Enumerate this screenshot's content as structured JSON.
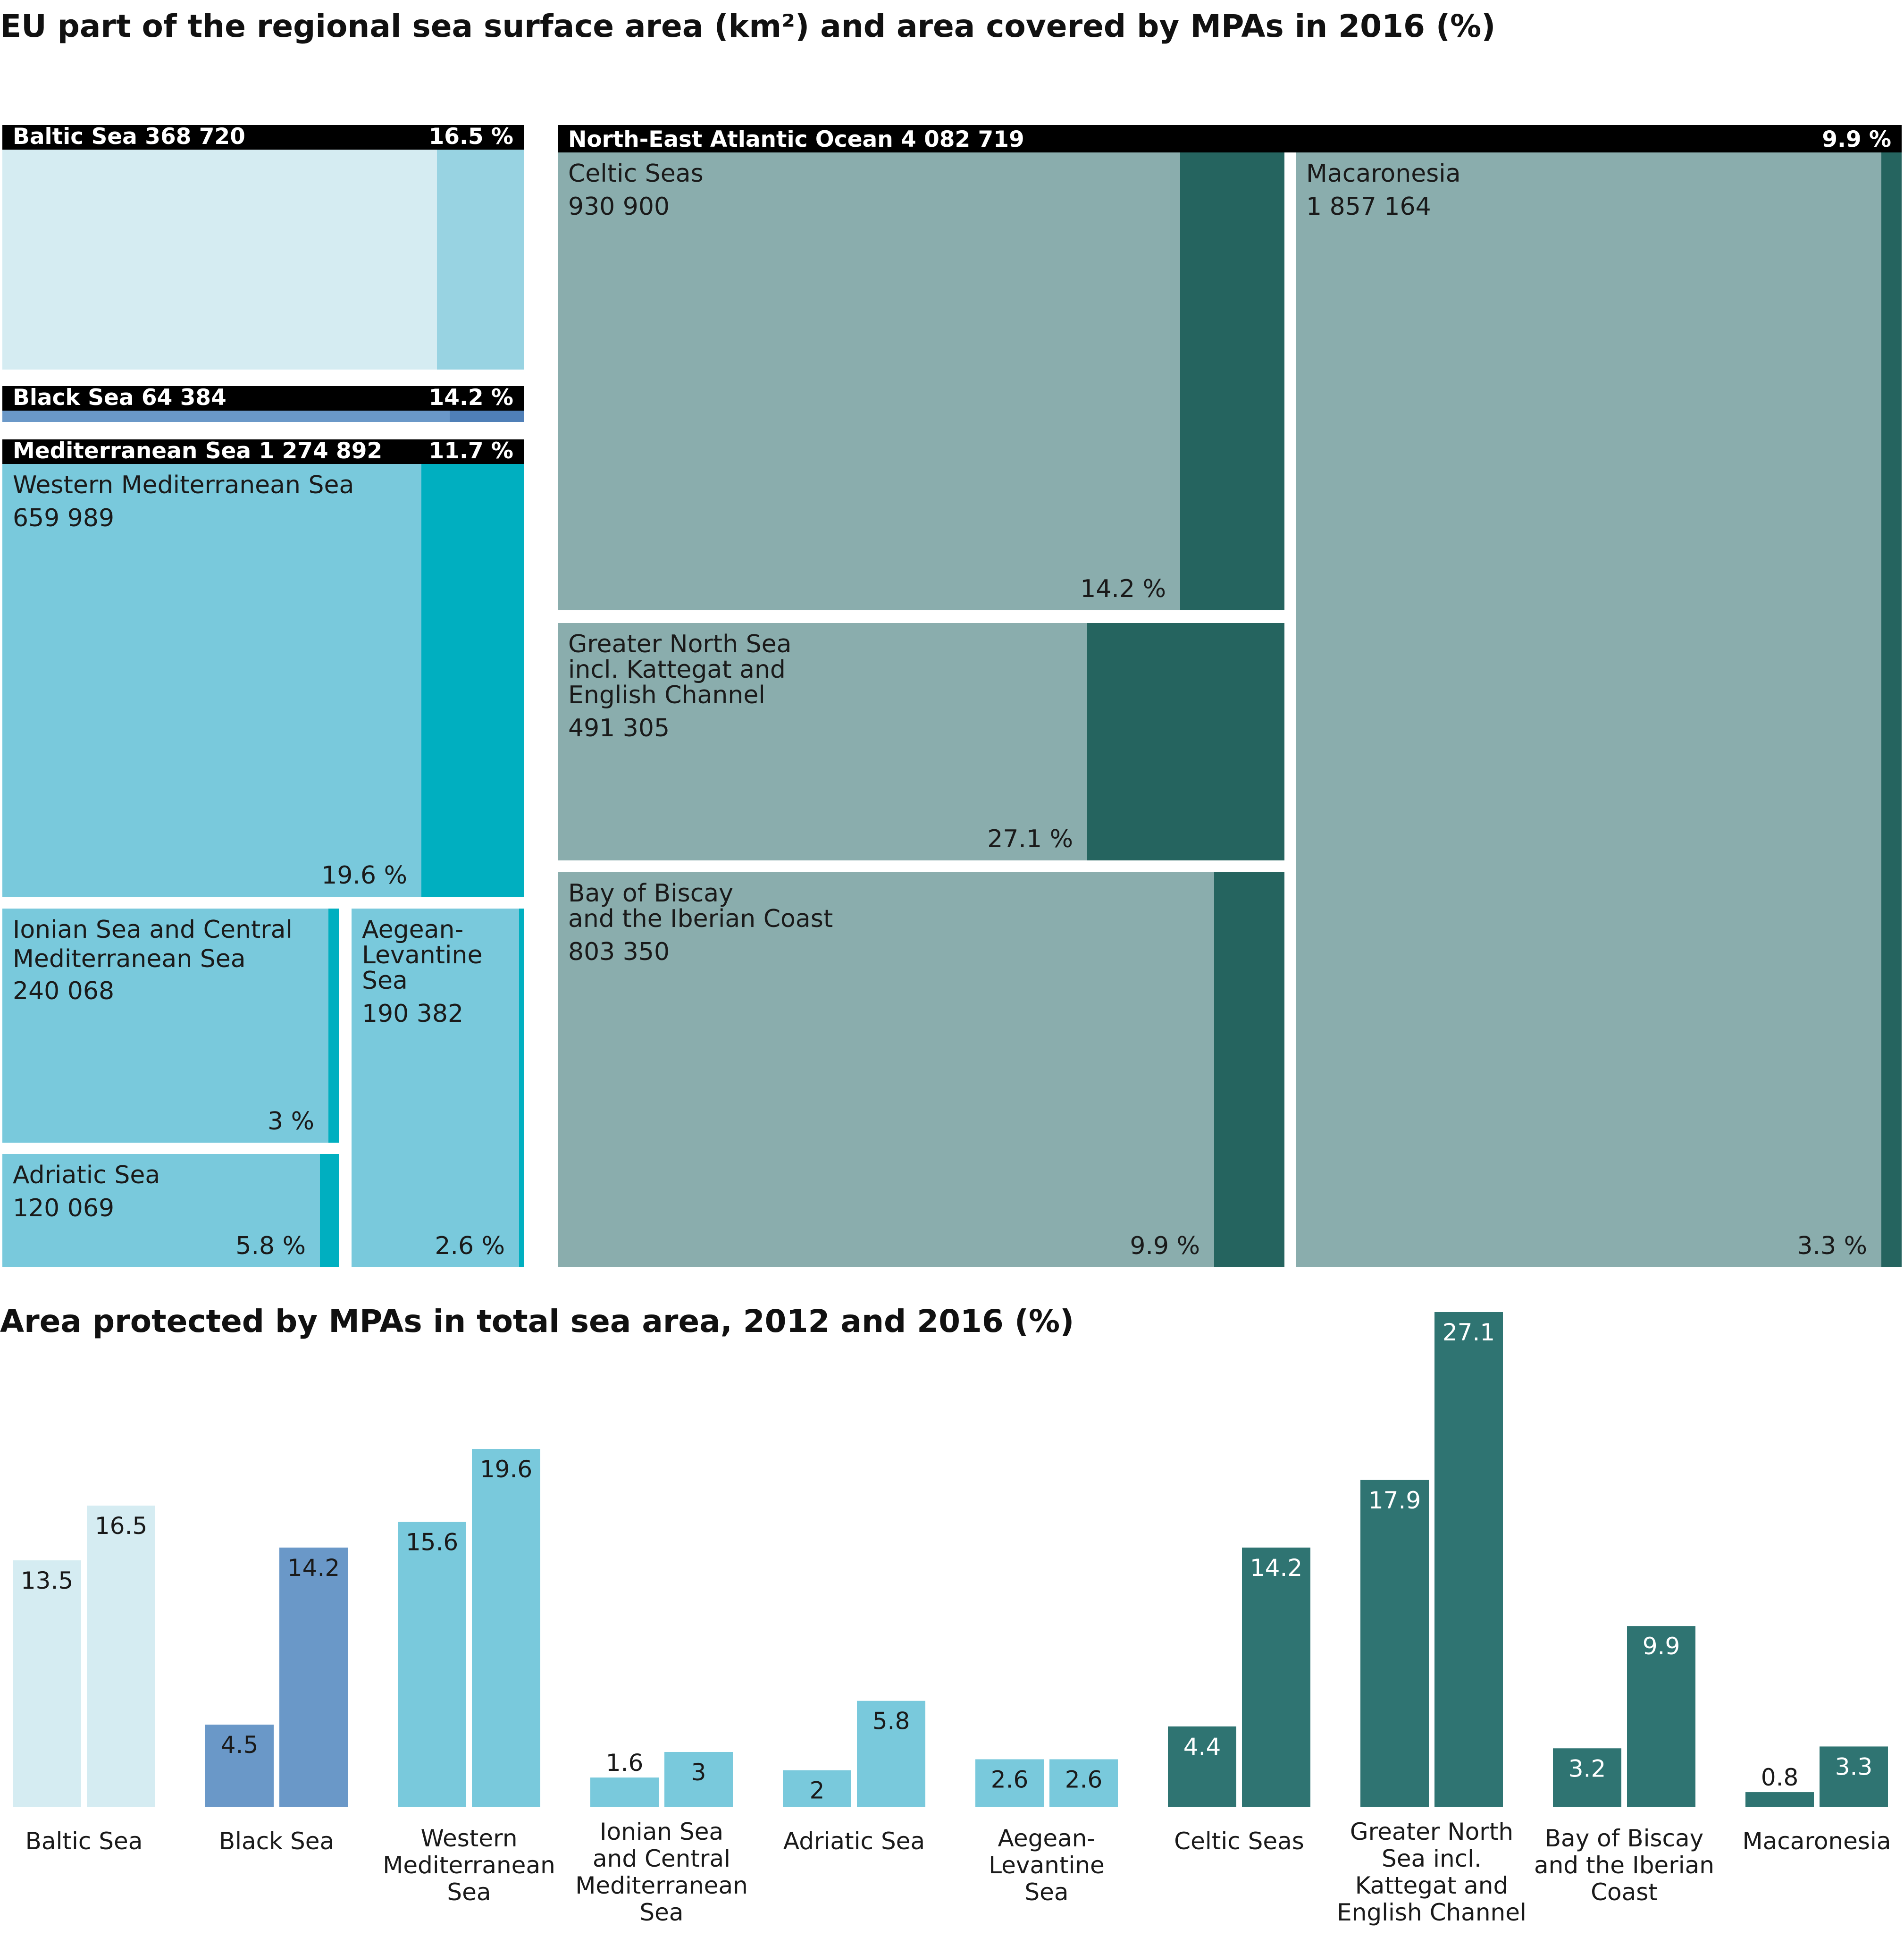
{
  "titles": {
    "treemap": "EU part of the regional sea surface area (km²) and area covered by MPAs in 2016 (%)",
    "bars": "Area protected by MPAs in total sea area, 2012 and 2016 (%)"
  },
  "colors": {
    "baltic_light": "#d5ecf2",
    "baltic_dark": "#98d3e2",
    "black_light": "#6a98c8",
    "black_dark": "#4f7fb7",
    "med_light": "#79c9dc",
    "med_dark": "#00afc0",
    "atl_light": "#8aadad",
    "atl_dark": "#25645f",
    "atl_bar": "#2f7472",
    "header": "#000000"
  },
  "chart_data": [
    {
      "type": "treemap",
      "title": "EU part of the regional sea surface area (km²) and area covered by MPAs in 2016 (%)",
      "regions": [
        {
          "name": "Baltic Sea",
          "area_label": "368 720",
          "mpa_label": "16.5 %",
          "area": 368720,
          "mpa": 16.5
        },
        {
          "name": "Black Sea",
          "area_label": "64 384",
          "mpa_label": "14.2 %",
          "area": 64384,
          "mpa": 14.2
        },
        {
          "name": "Mediterranean Sea",
          "area_label": "1 274 892",
          "mpa_label": "11.7 %",
          "area": 1274892,
          "mpa": 11.7,
          "subregions": [
            {
              "name": "Western Mediterranean Sea",
              "lines": [
                "Western Mediterranean Sea"
              ],
              "area_label": "659 989",
              "mpa_label": "19.6 %",
              "area": 659989,
              "mpa": 19.6
            },
            {
              "name": "Ionian Sea and Central Mediterranean Sea",
              "lines": [
                "Ionian Sea and Central",
                "Mediterranean Sea"
              ],
              "area_label": "240 068",
              "mpa_label": "3 %",
              "area": 240068,
              "mpa": 3
            },
            {
              "name": "Adriatic Sea",
              "lines": [
                "Adriatic Sea"
              ],
              "area_label": "120 069",
              "mpa_label": "5.8 %",
              "area": 120069,
              "mpa": 5.8
            },
            {
              "name": "Aegean-Levantine Sea",
              "lines": [
                "Aegean-",
                "Levantine",
                "Sea"
              ],
              "area_label": "190 382",
              "mpa_label": "2.6 %",
              "area": 190382,
              "mpa": 2.6
            }
          ]
        },
        {
          "name": "North-East Atlantic Ocean",
          "area_label": "4 082 719",
          "mpa_label": "9.9 %",
          "area": 4082719,
          "mpa": 9.9,
          "subregions": [
            {
              "name": "Celtic Seas",
              "lines": [
                "Celtic Seas"
              ],
              "area_label": "930 900",
              "mpa_label": "14.2 %",
              "area": 930900,
              "mpa": 14.2
            },
            {
              "name": "Greater North Sea incl. Kattegat and English Channel",
              "lines": [
                "Greater North Sea",
                "incl. Kattegat and",
                "English Channel"
              ],
              "area_label": "491 305",
              "mpa_label": "27.1 %",
              "area": 491305,
              "mpa": 27.1
            },
            {
              "name": "Bay of Biscay and the Iberian Coast",
              "lines": [
                "Bay of Biscay",
                "and the Iberian Coast"
              ],
              "area_label": "803 350",
              "mpa_label": "9.9 %",
              "area": 803350,
              "mpa": 9.9
            },
            {
              "name": "Macaronesia",
              "lines": [
                "Macaronesia"
              ],
              "area_label": "1 857 164",
              "mpa_label": "3.3 %",
              "area": 1857164,
              "mpa": 3.3
            }
          ]
        }
      ]
    },
    {
      "type": "bar",
      "title": "Area protected by MPAs in total sea area, 2012 and 2016 (%)",
      "ylabel": "%",
      "ylim": [
        0,
        27.1
      ],
      "series_names": [
        "2012",
        "2016"
      ],
      "categories": [
        {
          "name": "Baltic Sea",
          "lines": [
            "Baltic Sea"
          ],
          "v2012": 13.5,
          "v2016": 16.5,
          "l2012": "13.5",
          "l2016": "16.5",
          "group": "baltic"
        },
        {
          "name": "Black Sea",
          "lines": [
            "Black Sea"
          ],
          "v2012": 4.5,
          "v2016": 14.2,
          "l2012": "4.5",
          "l2016": "14.2",
          "group": "black"
        },
        {
          "name": "Western Mediterranean Sea",
          "lines": [
            "Western",
            "Mediterranean",
            "Sea"
          ],
          "v2012": 15.6,
          "v2016": 19.6,
          "l2012": "15.6",
          "l2016": "19.6",
          "group": "med"
        },
        {
          "name": "Ionian Sea and Central Mediterranean Sea",
          "lines": [
            "Ionian Sea",
            "and Central",
            "Mediterranean",
            "Sea"
          ],
          "v2012": 1.6,
          "v2016": 3,
          "l2012": "1.6",
          "l2016": "3",
          "group": "med"
        },
        {
          "name": "Adriatic Sea",
          "lines": [
            "Adriatic Sea"
          ],
          "v2012": 2,
          "v2016": 5.8,
          "l2012": "2",
          "l2016": "5.8",
          "group": "med"
        },
        {
          "name": "Aegean-Levantine Sea",
          "lines": [
            "Aegean-",
            "Levantine",
            "Sea"
          ],
          "v2012": 2.6,
          "v2016": 2.6,
          "l2012": "2.6",
          "l2016": "2.6",
          "group": "med"
        },
        {
          "name": "Celtic Seas",
          "lines": [
            "Celtic Seas"
          ],
          "v2012": 4.4,
          "v2016": 14.2,
          "l2012": "4.4",
          "l2016": "14.2",
          "group": "atl"
        },
        {
          "name": "Greater North Sea incl. Kattegat and English Channel",
          "lines": [
            "Greater North",
            "Sea incl.",
            "Kattegat and",
            "English Channel"
          ],
          "v2012": 17.9,
          "v2016": 27.1,
          "l2012": "17.9",
          "l2016": "27.1",
          "group": "atl"
        },
        {
          "name": "Bay of Biscay and the Iberian Coast",
          "lines": [
            "Bay of Biscay",
            "and the Iberian",
            "Coast"
          ],
          "v2012": 3.2,
          "v2016": 9.9,
          "l2012": "3.2",
          "l2016": "9.9",
          "group": "atl"
        },
        {
          "name": "Macaronesia",
          "lines": [
            "Macaronesia"
          ],
          "v2012": 0.8,
          "v2016": 3.3,
          "l2012": "0.8",
          "l2016": "3.3",
          "group": "atl"
        }
      ]
    }
  ]
}
